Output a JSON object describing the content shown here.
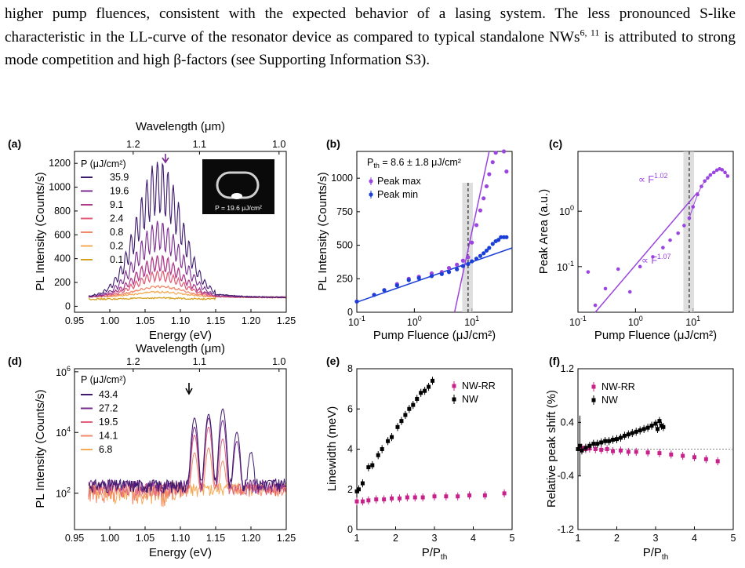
{
  "paragraph": {
    "text_a": "higher pump fluences, consistent with the expected behavior of a lasing system. The less pronounced S-like characteristic in the LL-curve of the resonator device as compared to typical standalone NWs",
    "cite": "6, 11",
    "text_b": " is attributed to strong mode competition and high β-factors (see Supporting Information S3)."
  },
  "colors": {
    "purple_dark": "#3d1a6e",
    "purple": "#7a2b8f",
    "magenta": "#b03a8a",
    "pink": "#e0607a",
    "salmon": "#f08a6a",
    "orange": "#f5aa55",
    "gold": "#d4a020",
    "violet": "#9b45e0",
    "blue": "#1a3ed6",
    "nwrr": "#c8218a",
    "nw": "#000000"
  },
  "chart_data": [
    {
      "id": "a",
      "panel_label": "(a)",
      "type": "line",
      "xlabel": "Energy (eV)",
      "ylabel": "PL Intensity (Counts/s)",
      "top_xlabel": "Wavelength (μm)",
      "xlim": [
        0.95,
        1.25
      ],
      "ylim": [
        -50,
        1300
      ],
      "xticks": [
        "0.95",
        "1.00",
        "1.05",
        "1.10",
        "1.15",
        "1.20",
        "1.25"
      ],
      "yticks": [
        "0",
        "200",
        "400",
        "600",
        "800",
        "1000",
        "1200"
      ],
      "top_ticks": [
        "1.2",
        "1.1",
        "1.0"
      ],
      "legend_title": "P (μJ/cm²)",
      "series": [
        {
          "name": "35.9",
          "peak": 1230
        },
        {
          "name": "19.6",
          "peak": 720
        },
        {
          "name": "9.1",
          "peak": 430
        },
        {
          "name": "2.4",
          "peak": 300
        },
        {
          "name": "0.8",
          "peak": 210
        },
        {
          "name": "0.2",
          "peak": 140
        },
        {
          "name": "0.1",
          "peak": 95
        }
      ],
      "inset_label": "P = 19.6 μJ/cm²"
    },
    {
      "id": "b",
      "panel_label": "(b)",
      "type": "scatter",
      "xlabel": "Pump Fluence (μJ/cm²)",
      "ylabel": "PL Intensity (Counts/s)",
      "xscale": "log",
      "xlim": [
        0.1,
        50
      ],
      "ylim": [
        0,
        1200
      ],
      "xticks": [
        "10",
        "10",
        "10"
      ],
      "xtick_exps": [
        "-1",
        "0",
        "1"
      ],
      "yticks": [
        "0",
        "250",
        "500",
        "750",
        "1000"
      ],
      "annotation": "P",
      "annotation_sub": "th",
      "annotation_rest": " = 8.6 ± 1.8 μJ/cm²",
      "threshold": 8.6,
      "series": [
        {
          "name": "Peak max",
          "x": [
            0.1,
            0.2,
            0.3,
            0.5,
            0.8,
            1.2,
            2,
            3,
            4,
            5.5,
            7,
            8.6,
            10,
            12,
            14,
            16,
            18,
            20,
            23,
            26,
            29,
            32,
            36,
            40
          ],
          "y": [
            80,
            130,
            165,
            210,
            250,
            265,
            290,
            300,
            330,
            355,
            385,
            410,
            520,
            650,
            760,
            850,
            940,
            1030,
            1120,
            1190,
            1230,
            1250,
            1200,
            1050
          ]
        },
        {
          "name": "Peak min",
          "x": [
            0.1,
            0.2,
            0.3,
            0.5,
            0.8,
            1.2,
            2,
            3,
            4,
            5.5,
            7,
            8.6,
            10,
            12,
            14,
            16,
            18,
            20,
            23,
            26,
            29,
            32,
            36,
            40
          ],
          "y": [
            80,
            130,
            165,
            200,
            240,
            255,
            270,
            285,
            300,
            320,
            345,
            360,
            380,
            400,
            420,
            440,
            460,
            480,
            510,
            530,
            540,
            560,
            560,
            560
          ]
        }
      ]
    },
    {
      "id": "c",
      "panel_label": "(c)",
      "type": "scatter",
      "xlabel": "Pump Fluence (μJ/cm²)",
      "ylabel": "Peak Area (a.u.)",
      "xscale": "log",
      "yscale": "log",
      "xlim": [
        0.1,
        50
      ],
      "ylim": [
        0.015,
        12
      ],
      "xticks": [
        "10",
        "10",
        "10"
      ],
      "xtick_exps": [
        "-1",
        "0",
        "1"
      ],
      "yticks": [
        "10",
        "10"
      ],
      "ytick_exps": [
        "-1",
        "0"
      ],
      "fit_labels": [
        "∝ F",
        "∝ F"
      ],
      "fit_exps": [
        "1.02",
        "1.07"
      ],
      "threshold": 8.6,
      "series": [
        {
          "name": "Peak area",
          "x": [
            0.15,
            0.2,
            0.3,
            0.5,
            0.8,
            1.2,
            2,
            3,
            4,
            5.5,
            7,
            8.6,
            10,
            12,
            14,
            16,
            18,
            20,
            23,
            26,
            29,
            32,
            36,
            40
          ],
          "y": [
            0.08,
            0.02,
            0.04,
            0.09,
            0.035,
            0.1,
            0.15,
            0.22,
            0.3,
            0.4,
            0.55,
            0.75,
            1.2,
            2,
            2.8,
            3.5,
            4,
            4.5,
            5,
            5.5,
            5.8,
            5.6,
            5,
            4.3
          ]
        }
      ]
    },
    {
      "id": "d",
      "panel_label": "(d)",
      "type": "line",
      "xlabel": "Energy (eV)",
      "ylabel": "PL Intensity (Counts/s)",
      "top_xlabel": "Wavelength (μm)",
      "xlim": [
        0.95,
        1.25
      ],
      "yscale": "log",
      "xticks": [
        "0.95",
        "1.00",
        "1.05",
        "1.10",
        "1.15",
        "1.20",
        "1.25"
      ],
      "yticks": [
        "10",
        "10",
        "10"
      ],
      "ytick_exps": [
        "2",
        "4",
        "6"
      ],
      "top_ticks": [
        "1.2",
        "1.1",
        "1.0"
      ],
      "legend_title": "P (μJ/cm²)",
      "series": [
        {
          "name": "43.4"
        },
        {
          "name": "27.2"
        },
        {
          "name": "19.5"
        },
        {
          "name": "14.1"
        },
        {
          "name": "6.8"
        }
      ]
    },
    {
      "id": "e",
      "panel_label": "(e)",
      "type": "scatter",
      "xlabel": "P/P",
      "xlabel_sub": "th",
      "ylabel": "Linewidth (meV)",
      "xlim": [
        1,
        5
      ],
      "ylim": [
        0,
        8
      ],
      "xticks": [
        "1",
        "2",
        "3",
        "4",
        "5"
      ],
      "yticks": [
        "0",
        "2",
        "4",
        "6",
        "8"
      ],
      "series": [
        {
          "name": "NW-RR",
          "x": [
            1.0,
            1.15,
            1.3,
            1.5,
            1.7,
            1.9,
            2.1,
            2.3,
            2.5,
            2.7,
            3.0,
            3.3,
            3.6,
            3.9,
            4.3,
            4.8
          ],
          "y": [
            1.4,
            1.4,
            1.45,
            1.5,
            1.5,
            1.55,
            1.55,
            1.6,
            1.6,
            1.6,
            1.65,
            1.65,
            1.65,
            1.7,
            1.7,
            1.8
          ]
        },
        {
          "name": "NW",
          "x": [
            1.0,
            1.05,
            1.15,
            1.3,
            1.4,
            1.55,
            1.65,
            1.8,
            1.9,
            2.05,
            2.15,
            2.25,
            2.35,
            2.45,
            2.55,
            2.65,
            2.75,
            2.85,
            2.95
          ],
          "y": [
            1.9,
            2.0,
            2.3,
            3.1,
            3.2,
            3.7,
            4.0,
            4.4,
            4.6,
            5.1,
            5.4,
            5.7,
            6.0,
            6.2,
            6.5,
            6.8,
            6.9,
            7.1,
            7.4
          ]
        }
      ]
    },
    {
      "id": "f",
      "panel_label": "(f)",
      "type": "scatter",
      "xlabel": "P/P",
      "xlabel_sub": "th",
      "ylabel": "Relative peak shift (%)",
      "xlim": [
        1,
        5
      ],
      "ylim": [
        -1.2,
        1.2
      ],
      "xticks": [
        "1",
        "2",
        "3",
        "4",
        "5"
      ],
      "yticks": [
        "-1.2",
        "-0.4",
        "0.4",
        "1.2"
      ],
      "series": [
        {
          "name": "NW-RR",
          "x": [
            1.0,
            1.1,
            1.2,
            1.3,
            1.45,
            1.6,
            1.75,
            1.9,
            2.1,
            2.3,
            2.5,
            2.8,
            3.1,
            3.4,
            3.7,
            4.0,
            4.3,
            4.6
          ],
          "y": [
            0.0,
            0.02,
            0.0,
            0.01,
            0.0,
            -0.01,
            0.0,
            -0.03,
            -0.02,
            -0.04,
            -0.04,
            -0.05,
            -0.06,
            -0.08,
            -0.1,
            -0.12,
            -0.15,
            -0.18
          ]
        },
        {
          "name": "NW",
          "x": [
            1.0,
            1.05,
            1.1,
            1.2,
            1.3,
            1.4,
            1.5,
            1.6,
            1.7,
            1.8,
            1.9,
            2.0,
            2.1,
            2.2,
            2.3,
            2.4,
            2.5,
            2.6,
            2.7,
            2.8,
            2.9,
            3.0,
            3.05,
            3.1,
            3.15,
            3.2
          ],
          "y": [
            0.0,
            0.05,
            -0.02,
            0.02,
            0.05,
            0.08,
            0.08,
            0.1,
            0.12,
            0.12,
            0.14,
            0.15,
            0.17,
            0.2,
            0.22,
            0.24,
            0.26,
            0.28,
            0.3,
            0.32,
            0.35,
            0.38,
            0.3,
            0.42,
            0.35,
            0.33
          ]
        }
      ]
    }
  ]
}
